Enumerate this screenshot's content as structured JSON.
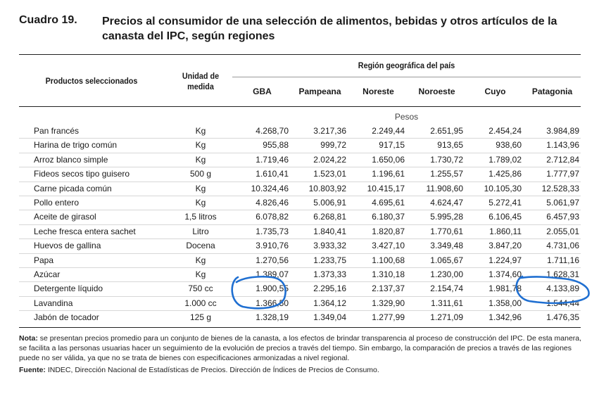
{
  "title": {
    "number": "Cuadro 19.",
    "text": "Precios al consumidor de una selección de alimentos, bebidas y otros artículos de la canasta del IPC, según regiones"
  },
  "headers": {
    "products": "Productos seleccionados",
    "unit": "Unidad de medida",
    "region": "Región geográfica del país",
    "regions": [
      "GBA",
      "Pampeana",
      "Noreste",
      "Noroeste",
      "Cuyo",
      "Patagonia"
    ],
    "currency": "Pesos"
  },
  "rows": [
    {
      "product": "Pan francés",
      "unit": "Kg",
      "values": [
        "4.268,70",
        "3.217,36",
        "2.249,44",
        "2.651,95",
        "2.454,24",
        "3.984,89"
      ]
    },
    {
      "product": "Harina de trigo común",
      "unit": "Kg",
      "values": [
        "955,88",
        "999,72",
        "917,15",
        "913,65",
        "938,60",
        "1.143,96"
      ]
    },
    {
      "product": "Arroz blanco simple",
      "unit": "Kg",
      "values": [
        "1.719,46",
        "2.024,22",
        "1.650,06",
        "1.730,72",
        "1.789,02",
        "2.712,84"
      ]
    },
    {
      "product": "Fideos secos tipo guisero",
      "unit": "500 g",
      "values": [
        "1.610,41",
        "1.523,01",
        "1.196,61",
        "1.255,57",
        "1.425,86",
        "1.777,97"
      ]
    },
    {
      "product": "Carne picada común",
      "unit": "Kg",
      "values": [
        "10.324,46",
        "10.803,92",
        "10.415,17",
        "11.908,60",
        "10.105,30",
        "12.528,33"
      ]
    },
    {
      "product": "Pollo entero",
      "unit": "Kg",
      "values": [
        "4.826,46",
        "5.006,91",
        "4.695,61",
        "4.624,47",
        "5.272,41",
        "5.061,97"
      ]
    },
    {
      "product": "Aceite de girasol",
      "unit": "1,5 litros",
      "values": [
        "6.078,82",
        "6.268,81",
        "6.180,37",
        "5.995,28",
        "6.106,45",
        "6.457,93"
      ]
    },
    {
      "product": "Leche fresca entera sachet",
      "unit": "Litro",
      "values": [
        "1.735,73",
        "1.840,41",
        "1.820,87",
        "1.770,61",
        "1.860,11",
        "2.055,01"
      ]
    },
    {
      "product": "Huevos de gallina",
      "unit": "Docena",
      "values": [
        "3.910,76",
        "3.933,32",
        "3.427,10",
        "3.349,48",
        "3.847,20",
        "4.731,06"
      ]
    },
    {
      "product": "Papa",
      "unit": "Kg",
      "values": [
        "1.270,56",
        "1.233,75",
        "1.100,68",
        "1.065,67",
        "1.224,97",
        "1.711,16"
      ]
    },
    {
      "product": "Azúcar",
      "unit": "Kg",
      "values": [
        "1.389,07",
        "1.373,33",
        "1.310,18",
        "1.230,00",
        "1.374,60",
        "1.628,31"
      ]
    },
    {
      "product": "Detergente líquido",
      "unit": "750 cc",
      "values": [
        "1.900,55",
        "2.295,16",
        "2.137,37",
        "2.154,74",
        "1.981,78",
        "4.133,89"
      ]
    },
    {
      "product": "Lavandina",
      "unit": "1.000 cc",
      "values": [
        "1.366,50",
        "1.364,12",
        "1.329,90",
        "1.311,61",
        "1.358,00",
        "1.544,44"
      ]
    },
    {
      "product": "Jabón de tocador",
      "unit": "125 g",
      "values": [
        "1.328,19",
        "1.349,04",
        "1.277,99",
        "1.271,09",
        "1.342,96",
        "1.476,35"
      ]
    }
  ],
  "note": {
    "label": "Nota:",
    "text": "se presentan precios promedio para un conjunto de bienes de la canasta, a los efectos de brindar transparencia al proceso de construcción del IPC. De esta manera, se facilita a las personas usuarias hacer un seguimiento de la evolución de precios a través del tiempo. Sin embargo, la comparación de precios a través de las regiones puede no ser válida, ya que no se trata de bienes con especificaciones armonizadas a nivel regional."
  },
  "source": {
    "label": "Fuente:",
    "text": "INDEC, Dirección Nacional de Estadísticas de Precios. Dirección de Índices de Precios de Consumo."
  },
  "colors": {
    "annotation": "#1f6fd1",
    "rule": "#222222"
  }
}
